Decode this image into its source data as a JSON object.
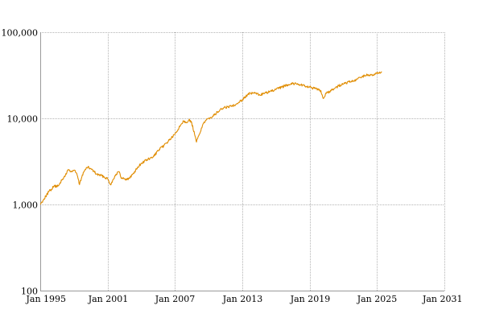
{
  "chart_data": {
    "type": "line",
    "title": "",
    "xlabel": "",
    "ylabel": "",
    "x_axis": {
      "kind": "date",
      "range": [
        "1995-01-01",
        "2031-01-01"
      ],
      "ticks": [
        {
          "date": "1995-01-01",
          "label": "Jan 1995"
        },
        {
          "date": "2001-01-01",
          "label": "Jan 2001"
        },
        {
          "date": "2007-01-01",
          "label": "Jan 2007"
        },
        {
          "date": "2013-01-01",
          "label": "Jan 2013"
        },
        {
          "date": "2019-01-01",
          "label": "Jan 2019"
        },
        {
          "date": "2025-01-01",
          "label": "Jan 2025"
        },
        {
          "date": "2031-01-01",
          "label": "Jan 2031"
        }
      ]
    },
    "y_axis": {
      "scale": "log",
      "range": [
        100,
        100000
      ],
      "ticks": [
        {
          "value": 100,
          "label": "100"
        },
        {
          "value": 1000,
          "label": "1,000"
        },
        {
          "value": 10000,
          "label": "10,000"
        },
        {
          "value": 100000,
          "label": "100,000"
        }
      ]
    },
    "grid": true,
    "legend": "none",
    "series": [
      {
        "color": "#e08c00",
        "points": [
          [
            "1995-01-01",
            1000
          ],
          [
            "1995-04-01",
            1120
          ],
          [
            "1995-07-01",
            1250
          ],
          [
            "1995-10-01",
            1400
          ],
          [
            "1996-01-01",
            1500
          ],
          [
            "1996-04-01",
            1650
          ],
          [
            "1996-07-01",
            1600
          ],
          [
            "1996-10-01",
            1780
          ],
          [
            "1997-01-01",
            1950
          ],
          [
            "1997-04-01",
            2200
          ],
          [
            "1997-07-01",
            2550
          ],
          [
            "1997-10-01",
            2400
          ],
          [
            "1998-01-01",
            2500
          ],
          [
            "1998-04-01",
            2300
          ],
          [
            "1998-07-01",
            1700
          ],
          [
            "1998-10-01",
            2200
          ],
          [
            "1999-01-01",
            2550
          ],
          [
            "1999-04-01",
            2700
          ],
          [
            "1999-07-01",
            2600
          ],
          [
            "1999-10-01",
            2450
          ],
          [
            "2000-01-01",
            2250
          ],
          [
            "2000-07-01",
            2150
          ],
          [
            "2001-01-01",
            2000
          ],
          [
            "2001-04-01",
            1700
          ],
          [
            "2001-07-01",
            1950
          ],
          [
            "2001-10-01",
            2250
          ],
          [
            "2002-01-01",
            2400
          ],
          [
            "2002-04-01",
            2000
          ],
          [
            "2002-07-01",
            2000
          ],
          [
            "2002-10-01",
            1950
          ],
          [
            "2003-01-01",
            2050
          ],
          [
            "2003-07-01",
            2500
          ],
          [
            "2004-01-01",
            3000
          ],
          [
            "2004-07-01",
            3300
          ],
          [
            "2005-01-01",
            3500
          ],
          [
            "2005-07-01",
            4200
          ],
          [
            "2006-01-01",
            4800
          ],
          [
            "2006-07-01",
            5600
          ],
          [
            "2007-01-01",
            6500
          ],
          [
            "2007-07-01",
            8300
          ],
          [
            "2007-10-01",
            9400
          ],
          [
            "2008-01-01",
            9000
          ],
          [
            "2008-04-01",
            9600
          ],
          [
            "2008-07-01",
            8800
          ],
          [
            "2008-10-01",
            6500
          ],
          [
            "2008-12-01",
            5300
          ],
          [
            "2009-03-01",
            6500
          ],
          [
            "2009-07-01",
            8600
          ],
          [
            "2010-01-01",
            10000
          ],
          [
            "2010-07-01",
            10900
          ],
          [
            "2011-01-01",
            12500
          ],
          [
            "2011-07-01",
            13400
          ],
          [
            "2012-01-01",
            13800
          ],
          [
            "2012-07-01",
            14800
          ],
          [
            "2013-01-01",
            16500
          ],
          [
            "2013-07-01",
            19000
          ],
          [
            "2014-01-01",
            19800
          ],
          [
            "2014-07-01",
            18800
          ],
          [
            "2015-01-01",
            19500
          ],
          [
            "2015-07-01",
            20500
          ],
          [
            "2016-01-01",
            21500
          ],
          [
            "2016-07-01",
            23000
          ],
          [
            "2017-01-01",
            24500
          ],
          [
            "2017-07-01",
            25500
          ],
          [
            "2018-01-01",
            25000
          ],
          [
            "2018-07-01",
            24000
          ],
          [
            "2019-01-01",
            23000
          ],
          [
            "2019-07-01",
            22000
          ],
          [
            "2020-01-01",
            21000
          ],
          [
            "2020-03-15",
            17000
          ],
          [
            "2020-07-01",
            19500
          ],
          [
            "2021-01-01",
            21500
          ],
          [
            "2021-07-01",
            23500
          ],
          [
            "2022-01-01",
            25000
          ],
          [
            "2022-07-01",
            26500
          ],
          [
            "2023-01-01",
            27000
          ],
          [
            "2023-07-01",
            30000
          ],
          [
            "2024-01-01",
            31500
          ],
          [
            "2024-07-01",
            32000
          ],
          [
            "2025-01-01",
            33000
          ],
          [
            "2025-06-01",
            35000
          ]
        ]
      }
    ]
  }
}
